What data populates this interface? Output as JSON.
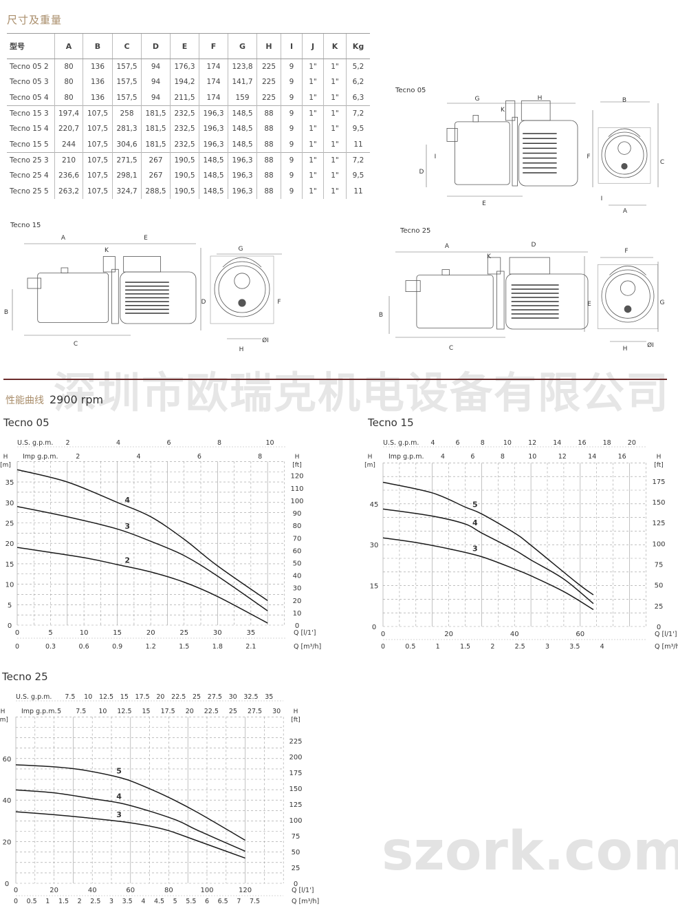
{
  "section_dims": {
    "title": "尺寸及重量"
  },
  "table": {
    "headers": [
      "型号",
      "A",
      "B",
      "C",
      "D",
      "E",
      "F",
      "G",
      "H",
      "I",
      "J",
      "K",
      "Kg"
    ],
    "rows": [
      [
        "Tecno 05 2",
        "80",
        "136",
        "157,5",
        "94",
        "176,3",
        "174",
        "123,8",
        "225",
        "9",
        "1\"",
        "1\"",
        "5,2"
      ],
      [
        "Tecno 05 3",
        "80",
        "136",
        "157,5",
        "94",
        "194,2",
        "174",
        "141,7",
        "225",
        "9",
        "1\"",
        "1\"",
        "6,2"
      ],
      [
        "Tecno 05 4",
        "80",
        "136",
        "157,5",
        "94",
        "211,5",
        "174",
        "159",
        "225",
        "9",
        "1\"",
        "1\"",
        "6,3"
      ],
      [
        "Tecno 15 3",
        "197,4",
        "107,5",
        "258",
        "181,5",
        "232,5",
        "196,3",
        "148,5",
        "88",
        "9",
        "1\"",
        "1\"",
        "7,2"
      ],
      [
        "Tecno 15 4",
        "220,7",
        "107,5",
        "281,3",
        "181,5",
        "232,5",
        "196,3",
        "148,5",
        "88",
        "9",
        "1\"",
        "1\"",
        "9,5"
      ],
      [
        "Tecno 15 5",
        "244",
        "107,5",
        "304,6",
        "181,5",
        "232,5",
        "196,3",
        "148,5",
        "88",
        "9",
        "1\"",
        "1\"",
        "11"
      ],
      [
        "Tecno 25 3",
        "210",
        "107,5",
        "271,5",
        "267",
        "190,5",
        "148,5",
        "196,3",
        "88",
        "9",
        "1\"",
        "1\"",
        "7,2"
      ],
      [
        "Tecno 25 4",
        "236,6",
        "107,5",
        "298,1",
        "267",
        "190,5",
        "148,5",
        "196,3",
        "88",
        "9",
        "1\"",
        "1\"",
        "9,5"
      ],
      [
        "Tecno 25 5",
        "263,2",
        "107,5",
        "324,7",
        "288,5",
        "190,5",
        "148,5",
        "196,3",
        "88",
        "9",
        "1\"",
        "1\"",
        "11"
      ]
    ]
  },
  "drawings": [
    {
      "title": "Tecno 05",
      "labels": [
        "G",
        "H",
        "K",
        "F",
        "D",
        "I",
        "E",
        "B",
        "C",
        "A",
        "I"
      ]
    },
    {
      "title": "Tecno 15",
      "labels": [
        "A",
        "E",
        "K",
        "B",
        "C",
        "D",
        "G",
        "F",
        "H",
        "ØI"
      ]
    },
    {
      "title": "Tecno 25",
      "labels": [
        "A",
        "D",
        "K",
        "B",
        "E",
        "C",
        "F",
        "G",
        "H",
        "ØI"
      ]
    }
  ],
  "section_perf": {
    "title_cn": "性能曲线",
    "rpm": "2900 rpm"
  },
  "watermarks": {
    "company": "深圳市欧瑞克机电设备有限公司",
    "site": "szork.com"
  },
  "chart_data": [
    {
      "type": "line",
      "title": "Tecno 05",
      "y_left_label": [
        "H",
        "[m]"
      ],
      "y_right_label": [
        "H",
        "[ft]"
      ],
      "x_label": "Q [l/1']",
      "x2_label": "Q [m³/h]",
      "top1_label": "U.S. g.p.m.",
      "top2_label": "Imp g.p.m.",
      "x_ticks": [
        "0",
        "5",
        "10",
        "15",
        "20",
        "25",
        "30",
        "35"
      ],
      "x2_ticks": [
        "0",
        "0.3",
        "0.6",
        "0.9",
        "1.2",
        "1.5",
        "1.8",
        "2.1"
      ],
      "y_ticks": [
        "0",
        "5",
        "10",
        "15",
        "20",
        "25",
        "30",
        "35"
      ],
      "y_right_ticks": [
        "0",
        "10",
        "20",
        "30",
        "40",
        "50",
        "60",
        "70",
        "80",
        "90",
        "100",
        "110",
        "120"
      ],
      "top1_ticks": [
        "2",
        "4",
        "6",
        "8",
        "10"
      ],
      "top2_ticks": [
        "2",
        "4",
        "6",
        "8"
      ],
      "xlim": [
        0,
        40
      ],
      "ylim": [
        0,
        40
      ],
      "grid": true,
      "series": [
        {
          "name": "4",
          "points": [
            [
              0,
              38
            ],
            [
              7.5,
              35
            ],
            [
              15,
              30
            ],
            [
              20,
              26.5
            ],
            [
              25,
              21
            ],
            [
              30,
              14.5
            ],
            [
              37.5,
              6
            ]
          ]
        },
        {
          "name": "3",
          "points": [
            [
              0,
              29
            ],
            [
              7.5,
              26.5
            ],
            [
              15,
              23.5
            ],
            [
              20,
              20.5
            ],
            [
              25,
              17
            ],
            [
              30,
              12
            ],
            [
              37.5,
              3.5
            ]
          ]
        },
        {
          "name": "2",
          "points": [
            [
              0,
              19
            ],
            [
              10,
              16.5
            ],
            [
              15,
              14.8
            ],
            [
              20,
              13
            ],
            [
              25,
              10.5
            ],
            [
              30,
              7
            ],
            [
              37.5,
              0.5
            ]
          ]
        }
      ]
    },
    {
      "type": "line",
      "title": "Tecno 15",
      "y_left_label": [
        "H",
        "[m]"
      ],
      "y_right_label": [
        "H",
        "[ft]"
      ],
      "x_label": "Q [l/1']",
      "x2_label": "Q [m³/h]",
      "top1_label": "U.S. g.p.m.",
      "top2_label": "Imp g.p.m.",
      "x_ticks": [
        "0",
        "20",
        "40",
        "60"
      ],
      "x2_ticks": [
        "0",
        "0.5",
        "1",
        "1.5",
        "2",
        "2.5",
        "3",
        "3.5",
        "4"
      ],
      "y_ticks": [
        "0",
        "15",
        "30",
        "45"
      ],
      "y_right_ticks": [
        "0",
        "25",
        "50",
        "75",
        "100",
        "125",
        "150",
        "175"
      ],
      "top1_ticks": [
        "4",
        "6",
        "8",
        "10",
        "12",
        "14",
        "16",
        "18",
        "20"
      ],
      "top2_ticks": [
        "4",
        "6",
        "8",
        "10",
        "12",
        "14",
        "16"
      ],
      "xlim": [
        0,
        80
      ],
      "ylim": [
        0,
        60
      ],
      "grid": true,
      "series": [
        {
          "name": "5",
          "points": [
            [
              0,
              52.9
            ],
            [
              15,
              49
            ],
            [
              25,
              43.8
            ],
            [
              30,
              41.3
            ],
            [
              40,
              34.3
            ],
            [
              45,
              29.8
            ],
            [
              59,
              16
            ],
            [
              64,
              11.6
            ]
          ]
        },
        {
          "name": "4",
          "points": [
            [
              0,
              43.1
            ],
            [
              15,
              40.5
            ],
            [
              25,
              37.6
            ],
            [
              30,
              34.3
            ],
            [
              40,
              28.1
            ],
            [
              45,
              24.4
            ],
            [
              55,
              17.4
            ],
            [
              64,
              8.4
            ]
          ]
        },
        {
          "name": "3",
          "points": [
            [
              0,
              32.5
            ],
            [
              10,
              30.8
            ],
            [
              20,
              28.5
            ],
            [
              30,
              25.6
            ],
            [
              40,
              21.1
            ],
            [
              45,
              18.6
            ],
            [
              55,
              12.8
            ],
            [
              64,
              6.2
            ]
          ]
        }
      ]
    },
    {
      "type": "line",
      "title": "Tecno 25",
      "y_left_label": [
        "H",
        "[m]"
      ],
      "y_right_label": [
        "H",
        "[ft]"
      ],
      "x_label": "Q [l/1']",
      "x2_label": "Q [m³/h]",
      "top1_label": "U.S. g.p.m.",
      "top2_label": "Imp g.p.m.",
      "x_ticks": [
        "0",
        "20",
        "40",
        "60",
        "80",
        "100",
        "120"
      ],
      "x2_ticks": [
        "0",
        "0.5",
        "1",
        "1.5",
        "2",
        "2.5",
        "3",
        "3.5",
        "4",
        "4.5",
        "5",
        "5.5",
        "6",
        "6.5",
        "7",
        "7.5"
      ],
      "y_ticks": [
        "0",
        "20",
        "40",
        "60"
      ],
      "y_right_ticks": [
        "0",
        "25",
        "50",
        "75",
        "100",
        "125",
        "150",
        "175",
        "200",
        "225"
      ],
      "top1_ticks": [
        "7.5",
        "10",
        "12.5",
        "15",
        "17.5",
        "20",
        "22.5",
        "25",
        "27.5",
        "30",
        "32.5",
        "35"
      ],
      "top2_ticks": [
        "5",
        "7.5",
        "10",
        "12.5",
        "15",
        "17.5",
        "20",
        "22.5",
        "25",
        "27.5",
        "30"
      ],
      "xlim": [
        0,
        140
      ],
      "ylim": [
        0,
        80
      ],
      "grid": true,
      "series": [
        {
          "name": "5",
          "points": [
            [
              0,
              57
            ],
            [
              20,
              56
            ],
            [
              35,
              54.5
            ],
            [
              55,
              50.7
            ],
            [
              65,
              47.4
            ],
            [
              80,
              41.3
            ],
            [
              95,
              34.1
            ],
            [
              120,
              20.7
            ]
          ]
        },
        {
          "name": "4",
          "points": [
            [
              0,
              44.9
            ],
            [
              20,
              43.5
            ],
            [
              40,
              40.7
            ],
            [
              55,
              38.5
            ],
            [
              70,
              34.7
            ],
            [
              85,
              30
            ],
            [
              95,
              25.5
            ],
            [
              120,
              15.4
            ]
          ]
        },
        {
          "name": "3",
          "points": [
            [
              0,
              34.4
            ],
            [
              20,
              33
            ],
            [
              35,
              31.7
            ],
            [
              55,
              29.7
            ],
            [
              70,
              27.5
            ],
            [
              80,
              25.3
            ],
            [
              95,
              20.4
            ],
            [
              120,
              12.1
            ]
          ]
        }
      ]
    }
  ]
}
